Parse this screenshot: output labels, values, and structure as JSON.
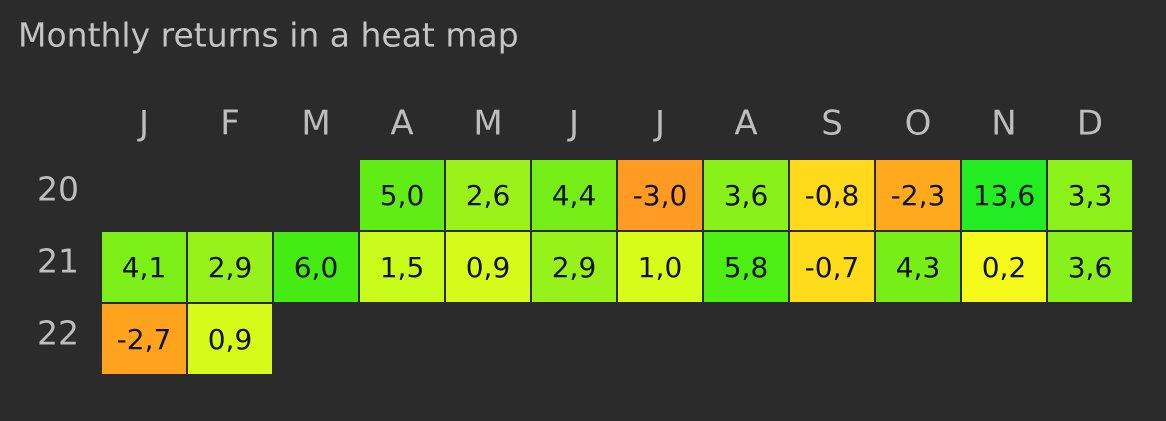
{
  "chart_data": {
    "type": "heatmap",
    "title": "Monthly returns in a heat map",
    "categories": [
      "J",
      "F",
      "M",
      "A",
      "M",
      "J",
      "J",
      "A",
      "S",
      "O",
      "N",
      "D"
    ],
    "series": [
      {
        "name": "20",
        "values": [
          null,
          null,
          null,
          5.0,
          2.6,
          4.4,
          -3.0,
          3.6,
          -0.8,
          -2.3,
          13.6,
          3.3
        ],
        "value_labels": [
          null,
          null,
          null,
          "5,0",
          "2,6",
          "4,4",
          "-3,0",
          "3,6",
          "-0,8",
          "-2,3",
          "13,6",
          "3,3"
        ],
        "colors": [
          null,
          null,
          null,
          "#62ec16",
          "#9af21a",
          "#74ee16",
          "#ff9a22",
          "#8af01a",
          "#ffd91a",
          "#ffaa1c",
          "#22ec22",
          "#8cf01a"
        ]
      },
      {
        "name": "21",
        "values": [
          4.1,
          2.9,
          6.0,
          1.5,
          0.9,
          2.9,
          1.0,
          5.8,
          -0.7,
          4.3,
          0.2,
          3.6
        ],
        "value_labels": [
          "4,1",
          "2,9",
          "6,0",
          "1,5",
          "0,9",
          "2,9",
          "1,0",
          "5,8",
          "-0,7",
          "4,3",
          "0,2",
          "3,6"
        ],
        "colors": [
          "#7cee18",
          "#96f21a",
          "#44ec14",
          "#c8fa1a",
          "#d6fa1a",
          "#96f21a",
          "#d8fc1a",
          "#4cee14",
          "#ffdc1a",
          "#78ee18",
          "#f4fa1a",
          "#88f01a"
        ]
      },
      {
        "name": "22",
        "values": [
          -2.7,
          0.9,
          null,
          null,
          null,
          null,
          null,
          null,
          null,
          null,
          null,
          null
        ],
        "value_labels": [
          "-2,7",
          "0,9",
          null,
          null,
          null,
          null,
          null,
          null,
          null,
          null,
          null,
          null
        ],
        "colors": [
          "#ffa21e",
          "#d6fa1a",
          null,
          null,
          null,
          null,
          null,
          null,
          null,
          null,
          null,
          null
        ]
      }
    ]
  }
}
